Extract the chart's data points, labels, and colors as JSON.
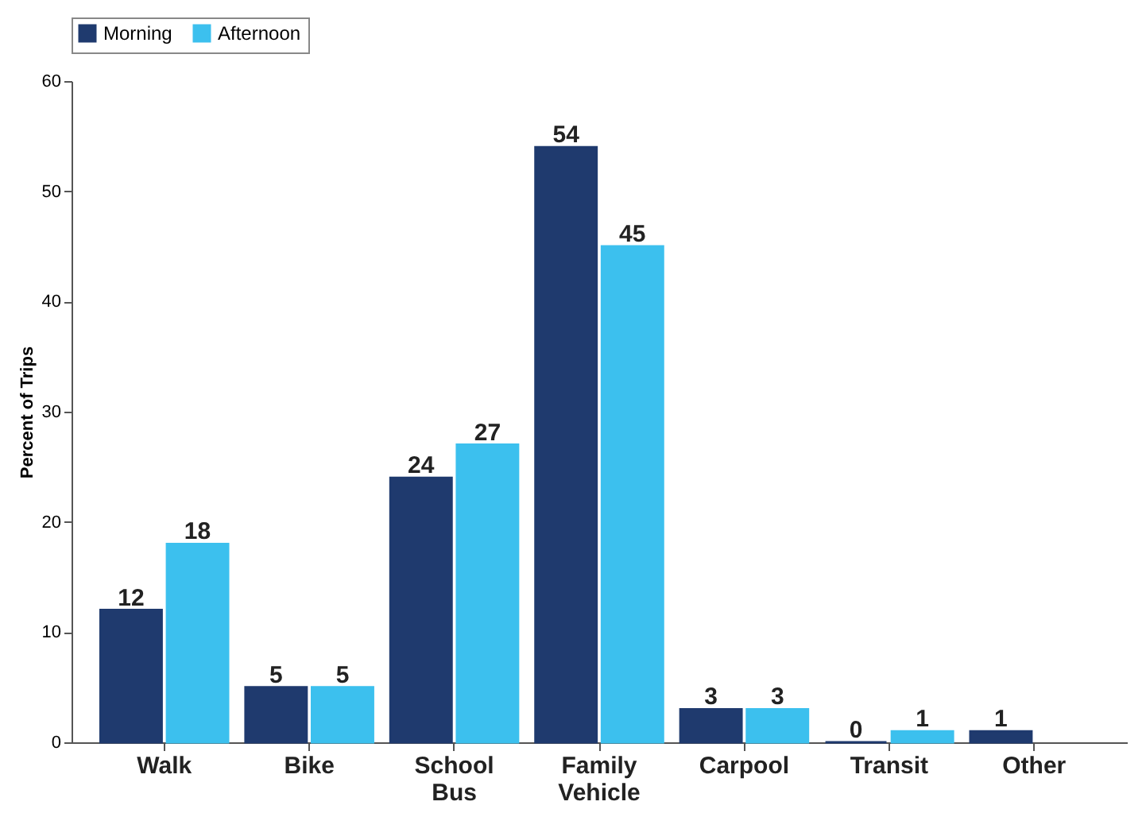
{
  "chart_data": {
    "type": "bar",
    "ylabel": "Percent of Trips",
    "categories": [
      "Walk",
      "Bike",
      "School Bus",
      "Family Vehicle",
      "Carpool",
      "Transit",
      "Other"
    ],
    "series": [
      {
        "name": "Morning",
        "color": "#1f3a6e",
        "values": [
          12,
          5,
          24,
          54,
          3,
          0,
          1
        ]
      },
      {
        "name": "Afternoon",
        "color": "#3cc0ee",
        "values": [
          18,
          5,
          27,
          45,
          3,
          1,
          null
        ]
      }
    ],
    "ylim": [
      0,
      60
    ],
    "yticks": [
      0,
      10,
      20,
      30,
      40,
      50,
      60
    ],
    "data_labels": true,
    "legend": "top"
  }
}
